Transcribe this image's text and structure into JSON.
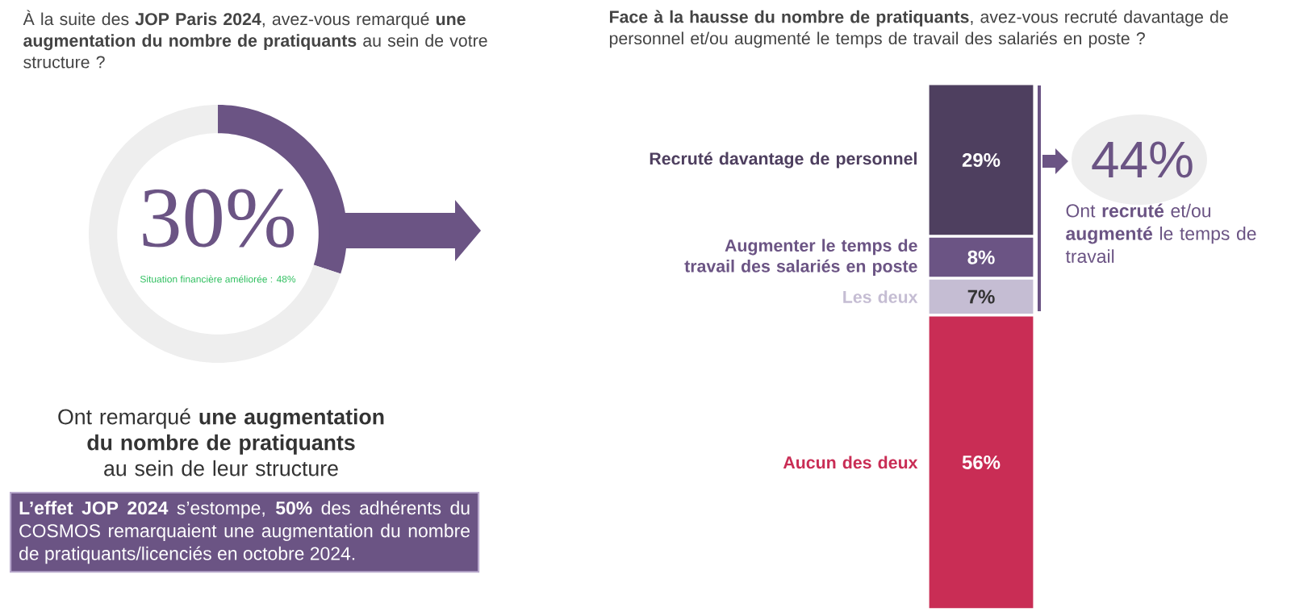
{
  "chart_data": [
    {
      "type": "donut",
      "title": "À la suite des **JOP Paris 2024**, avez-vous remarqué **une augmentation du nombre de pratiquants** au sein de votre structure ?",
      "categories": [
        null,
        null
      ],
      "values": [
        30,
        70
      ],
      "colors": [
        "#6b5484",
        "#eeeeee"
      ],
      "value_labels": [
        "30%",
        null
      ],
      "annotations": [
        "Situation financière améliorée : 48%",
        "Ont remarqué **une augmentation du nombre de pratiquants** au sein de leur structure",
        "**L’effet JOP 2024** s’estompe, **50%** des adhérents du COSMOS remarquaient une augmentation du nombre de pratiquants/licenciés en octobre 2024."
      ]
    },
    {
      "type": "bar",
      "stacked": true,
      "title": "**Face à la hausse du nombre de pratiquants**, avez-vous recruté davantage de personnel et/ou augmenté le temps de travail des salariés en poste  ?",
      "categories": [
        null
      ],
      "series": [
        {
          "name": "Aucun des deux",
          "color": "#c92d55",
          "values": [
            56
          ],
          "value_labels": [
            "56%"
          ]
        },
        {
          "name": "Les deux",
          "color": "#c5bdd3",
          "values": [
            7
          ],
          "value_labels": [
            "7%"
          ]
        },
        {
          "name": "Augmenter le temps de travail des salariés en poste",
          "color": "#6b5484",
          "values": [
            8
          ],
          "value_labels": [
            "8%"
          ]
        },
        {
          "name": "Recruté davantage de personnel",
          "color": "#4e3f5f",
          "values": [
            29
          ],
          "value_labels": [
            "29%"
          ]
        }
      ],
      "annotations": [
        "44%",
        "Ont **recruté** et/ou **augmenté** le temps de travail"
      ]
    }
  ]
}
